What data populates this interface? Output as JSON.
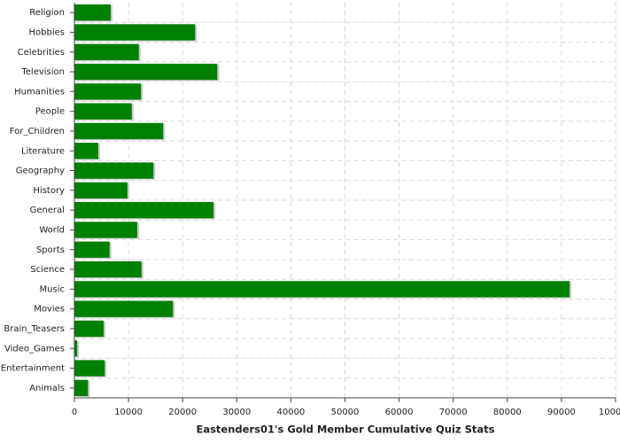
{
  "chart_data": {
    "type": "bar",
    "orientation": "horizontal",
    "x_label": "Eastenders01's Gold Member Cumulative Quiz Stats",
    "categories": [
      "Religion",
      "Hobbies",
      "Celebrities",
      "Television",
      "Humanities",
      "People",
      "For_Children",
      "Literature",
      "Geography",
      "History",
      "General",
      "World",
      "Sports",
      "Science",
      "Music",
      "Movies",
      "Brain_Teasers",
      "Video_Games",
      "Entertainment",
      "Animals"
    ],
    "values": [
      6700,
      22300,
      11900,
      26400,
      12300,
      10600,
      16400,
      4400,
      14600,
      9800,
      25700,
      11600,
      6500,
      12400,
      91500,
      18200,
      5400,
      500,
      5600,
      2500
    ],
    "color": "#008000",
    "xlim": [
      0,
      100000
    ],
    "xticks": [
      0,
      10000,
      20000,
      30000,
      40000,
      50000,
      60000,
      70000,
      80000,
      90000,
      100000
    ],
    "grid": true
  }
}
